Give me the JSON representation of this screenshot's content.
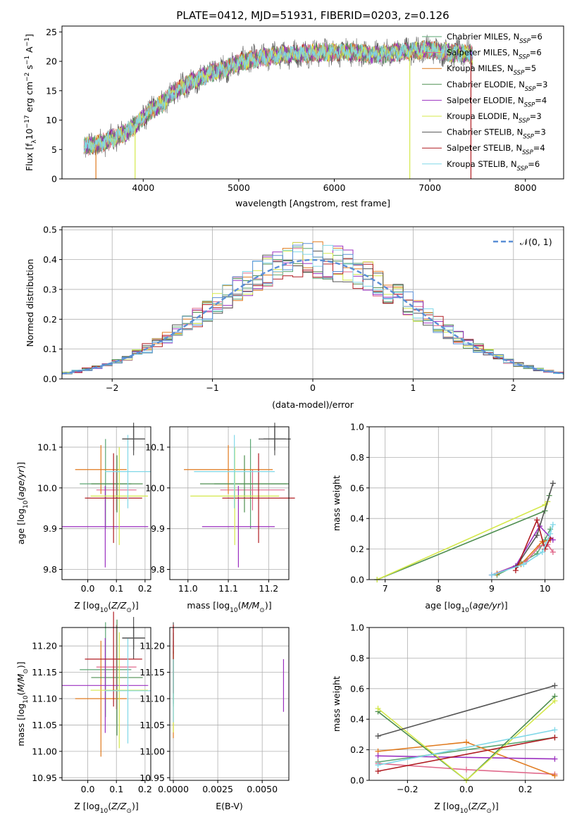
{
  "colors": {
    "chabrier_miles": "#5aa572",
    "salpeter_miles": "#e06a8c",
    "kroupa_miles": "#e07a1e",
    "chabrier_elodie": "#4f8f50",
    "salpeter_elodie": "#9b30c0",
    "kroupa_elodie": "#d4e84a",
    "chabrier_stelib": "#555555",
    "salpeter_stelib": "#b01c22",
    "kroupa_stelib": "#80d8e8",
    "blue": "#5b8fd6",
    "grid": "#b0b0b0",
    "normal_curve": "#5b8fd6"
  },
  "chart_data": [
    {
      "id": "spectrum",
      "type": "line",
      "title": "PLATE=0412, MJD=51931, FIBERID=0203, z=0.126",
      "xlabel": "wavelength [Angstrom, rest frame]",
      "ylabel": "Flux [f_λ 10^-17 erg cm^-2 s^-1 A^-1]",
      "xlim": [
        3150,
        8400
      ],
      "ylim": [
        0,
        26
      ],
      "xticks": [
        "4000",
        "5000",
        "6000",
        "7000",
        "8000"
      ],
      "yticks": [
        "0",
        "5",
        "10",
        "15",
        "20",
        "25"
      ],
      "grid": false,
      "legend_position": "right",
      "x_range": [
        3380,
        7450
      ],
      "envelope": {
        "x": [
          3380,
          3500,
          3600,
          3700,
          3800,
          3900,
          4000,
          4100,
          4200,
          4300,
          4400,
          4500,
          4600,
          4700,
          4800,
          4900,
          5000,
          5200,
          5400,
          5600,
          5800,
          6000,
          6200,
          6400,
          6600,
          6800,
          7000,
          7200,
          7400,
          7450
        ],
        "y": [
          5.5,
          5.8,
          6.3,
          7.0,
          7.8,
          8.8,
          10.5,
          12.0,
          12.8,
          14.5,
          15.5,
          16.5,
          17.2,
          18.0,
          18.4,
          19.0,
          19.8,
          20.5,
          21.0,
          21.3,
          21.4,
          21.6,
          21.5,
          21.2,
          21.4,
          21.8,
          22.0,
          21.5,
          21.3,
          21.0
        ]
      },
      "legend": [
        {
          "imf": "Chabrier",
          "lib": "MILES",
          "n": "6",
          "color_key": "chabrier_miles"
        },
        {
          "imf": "Salpeter",
          "lib": "MILES",
          "n": "6",
          "color_key": "salpeter_miles"
        },
        {
          "imf": "Kroupa",
          "lib": "MILES",
          "n": "5",
          "color_key": "kroupa_miles"
        },
        {
          "imf": "Chabrier",
          "lib": "ELODIE",
          "n": "3",
          "color_key": "chabrier_elodie"
        },
        {
          "imf": "Salpeter",
          "lib": "ELODIE",
          "n": "4",
          "color_key": "salpeter_elodie"
        },
        {
          "imf": "Kroupa",
          "lib": "ELODIE",
          "n": "3",
          "color_key": "kroupa_elodie"
        },
        {
          "imf": "Chabrier",
          "lib": "STELIB",
          "n": "3",
          "color_key": "chabrier_stelib"
        },
        {
          "imf": "Salpeter",
          "lib": "STELIB",
          "n": "4",
          "color_key": "salpeter_stelib"
        },
        {
          "imf": "Kroupa",
          "lib": "STELIB",
          "n": "6",
          "color_key": "kroupa_stelib"
        }
      ]
    },
    {
      "id": "residuals",
      "type": "line",
      "xlabel": "(data-model)/error",
      "ylabel": "Normed distribution",
      "xlim": [
        -2.5,
        2.5
      ],
      "ylim": [
        0,
        0.51
      ],
      "xticks": [
        "−2",
        "−1",
        "0",
        "1",
        "2"
      ],
      "yticks": [
        "0.0",
        "0.1",
        "0.2",
        "0.3",
        "0.4",
        "0.5"
      ],
      "grid": true,
      "legend_position": "top-right",
      "legend_label": "N(0, 1)",
      "bins_from": -2.5,
      "bin_width": 0.1
    },
    {
      "id": "z_age",
      "type": "scatter",
      "xlabel": "Z [log10(Z/Z⊙)]",
      "ylabel": "age  [log10(age/yr)]",
      "xlim": [
        -0.09,
        0.22
      ],
      "ylim": [
        9.775,
        10.15
      ],
      "xticks": [
        "0.0",
        "0.1",
        "0.2"
      ],
      "yticks": [
        "9.8",
        "9.9",
        "10.0",
        "10.1"
      ],
      "grid": true
    },
    {
      "id": "mass_age",
      "type": "scatter",
      "xlabel": "mass [log10(M/M⊙)]",
      "ylabel": "",
      "xlim": [
        10.955,
        11.25
      ],
      "ylim": [
        9.775,
        10.15
      ],
      "xticks": [
        "11.0",
        "11.1",
        "11.2"
      ],
      "yticks": [
        "9.8",
        "9.9",
        "10.0",
        "10.1"
      ],
      "grid": true
    },
    {
      "id": "age_weight",
      "type": "line",
      "xlabel": "age  [log10(age/yr)]",
      "ylabel": "mass weight",
      "xlim": [
        6.7,
        10.35
      ],
      "ylim": [
        0,
        1.0
      ],
      "xticks": [
        "7",
        "8",
        "9",
        "10"
      ],
      "yticks": [
        "0.0",
        "0.2",
        "0.4",
        "0.6",
        "0.8",
        "1.0"
      ],
      "grid": true
    },
    {
      "id": "z_mass",
      "type": "scatter",
      "xlabel": "Z [log10(Z/Z⊙)]",
      "ylabel": "mass [log10(M/M⊙)]",
      "xlim": [
        -0.09,
        0.22
      ],
      "ylim": [
        10.945,
        11.235
      ],
      "xticks": [
        "0.0",
        "0.1",
        "0.2"
      ],
      "yticks": [
        "10.95",
        "11.00",
        "11.05",
        "11.10",
        "11.15",
        "11.20"
      ],
      "grid": true
    },
    {
      "id": "ebv_mass",
      "type": "scatter",
      "xlabel": "E(B-V)",
      "ylabel": "",
      "xlim": [
        -0.0002,
        0.0065
      ],
      "ylim": [
        10.945,
        11.235
      ],
      "xticks": [
        "0.0000",
        "0.0025",
        "0.0050"
      ],
      "yticks": [
        "10.95",
        "11.00",
        "11.05",
        "11.10",
        "11.15",
        "11.20"
      ],
      "grid": true
    },
    {
      "id": "z_weight",
      "type": "line",
      "xlabel": "Z [log10(Z/Z⊙)]",
      "ylabel": "mass weight",
      "xlim": [
        -0.33,
        0.33
      ],
      "ylim": [
        0,
        1.0
      ],
      "xticks": [
        "−0.2",
        "0.0",
        "0.2"
      ],
      "yticks": [
        "0.0",
        "0.2",
        "0.4",
        "0.6",
        "0.8",
        "1.0"
      ],
      "grid": true
    }
  ],
  "models": [
    {
      "key": "chabrier_miles",
      "z": [
        0.062,
        0.09
      ],
      "age": [
        10.01,
        0.11
      ],
      "mass": [
        11.155,
        0.09
      ],
      "ebv": [
        0.0,
        0.07
      ],
      "age_w": [
        [
          9.1,
          0.03
        ],
        [
          9.55,
          0.11
        ],
        [
          9.85,
          0.17
        ],
        [
          10.0,
          0.26
        ],
        [
          10.1,
          0.33
        ]
      ],
      "z_w": [
        [
          -0.3,
          0.12
        ],
        [
          0.3,
          0.28
        ]
      ]
    },
    {
      "key": "salpeter_miles",
      "z": [
        0.1,
        0.07
      ],
      "age": [
        9.995,
        0.05
      ],
      "mass": [
        11.16,
        0.08
      ],
      "ebv": [
        0.0,
        0.05
      ],
      "age_w": [
        [
          9.0,
          0.03
        ],
        [
          9.65,
          0.12
        ],
        [
          9.9,
          0.22
        ],
        [
          10.05,
          0.23
        ],
        [
          10.15,
          0.18
        ]
      ],
      "z_w": [
        [
          -0.3,
          0.11
        ],
        [
          0.0,
          0.07
        ],
        [
          0.3,
          0.04
        ]
      ]
    },
    {
      "key": "kroupa_miles",
      "z": [
        0.046,
        0.09
      ],
      "age": [
        10.045,
        0.06
      ],
      "mass": [
        11.1,
        0.11
      ],
      "ebv": [
        0.0,
        0.075
      ],
      "age_w": [
        [
          9.1,
          0.04
        ],
        [
          9.55,
          0.1
        ],
        [
          9.95,
          0.25
        ],
        [
          10.1,
          0.26
        ]
      ],
      "z_w": [
        [
          -0.3,
          0.19
        ],
        [
          0.0,
          0.25
        ],
        [
          0.3,
          0.03
        ]
      ]
    },
    {
      "key": "chabrier_elodie",
      "z": [
        0.102,
        0.09
      ],
      "age": [
        10.01,
        0.07
      ],
      "mass": [
        11.14,
        0.11
      ],
      "ebv": [
        0.0,
        0.05
      ],
      "age_w": [
        [
          6.85,
          0.0
        ],
        [
          10.0,
          0.45
        ],
        [
          10.08,
          0.55
        ]
      ],
      "z_w": [
        [
          -0.3,
          0.45
        ],
        [
          0.0,
          0.0
        ],
        [
          0.3,
          0.55
        ]
      ]
    },
    {
      "key": "salpeter_elodie",
      "z": [
        0.061,
        0.15
      ],
      "age": [
        9.905,
        0.1
      ],
      "mass": [
        11.125,
        0.09
      ],
      "ebv": [
        0.0062,
        0.05
      ],
      "age_w": [
        [
          9.0,
          0.03
        ],
        [
          9.45,
          0.09
        ],
        [
          9.9,
          0.35
        ],
        [
          10.15,
          0.26
        ]
      ],
      "z_w": [
        [
          -0.3,
          0.16
        ],
        [
          0.3,
          0.14
        ]
      ]
    },
    {
      "key": "kroupa_elodie",
      "z": [
        0.11,
        0.1
      ],
      "age": [
        9.98,
        0.12
      ],
      "mass": [
        11.116,
        0.11
      ],
      "ebv": [
        0.0,
        0.08
      ],
      "age_w": [
        [
          6.85,
          0.0
        ],
        [
          10.0,
          0.49
        ],
        [
          10.05,
          0.51
        ]
      ],
      "z_w": [
        [
          -0.3,
          0.47
        ],
        [
          0.0,
          0.0
        ],
        [
          0.3,
          0.52
        ]
      ]
    },
    {
      "key": "chabrier_stelib",
      "z": [
        0.16,
        0.04
      ],
      "age": [
        10.12,
        0.04
      ],
      "mass": [
        11.215,
        0.04
      ],
      "ebv": [
        0.0,
        0.03
      ],
      "age_w": [
        [
          9.45,
          0.08
        ],
        [
          9.85,
          0.29
        ],
        [
          10.15,
          0.63
        ]
      ],
      "z_w": [
        [
          -0.3,
          0.29
        ],
        [
          0.3,
          0.62
        ]
      ]
    },
    {
      "key": "salpeter_stelib",
      "z": [
        0.09,
        0.1
      ],
      "age": [
        9.975,
        0.11
      ],
      "mass": [
        11.175,
        0.09
      ],
      "ebv": [
        0.0,
        0.065
      ],
      "age_w": [
        [
          9.45,
          0.06
        ],
        [
          9.85,
          0.39
        ],
        [
          10.0,
          0.2
        ],
        [
          10.1,
          0.27
        ]
      ],
      "z_w": [
        [
          -0.3,
          0.06
        ],
        [
          0.3,
          0.28
        ]
      ]
    },
    {
      "key": "kroupa_stelib",
      "z": [
        0.14,
        0.08
      ],
      "age": [
        10.04,
        0.09
      ],
      "mass": [
        11.115,
        0.1
      ],
      "ebv": [
        0.0,
        0.06
      ],
      "age_w": [
        [
          9.0,
          0.03
        ],
        [
          9.6,
          0.1
        ],
        [
          9.95,
          0.18
        ],
        [
          10.1,
          0.3
        ],
        [
          10.15,
          0.36
        ]
      ],
      "z_w": [
        [
          -0.3,
          0.1
        ],
        [
          0.3,
          0.33
        ]
      ]
    }
  ]
}
